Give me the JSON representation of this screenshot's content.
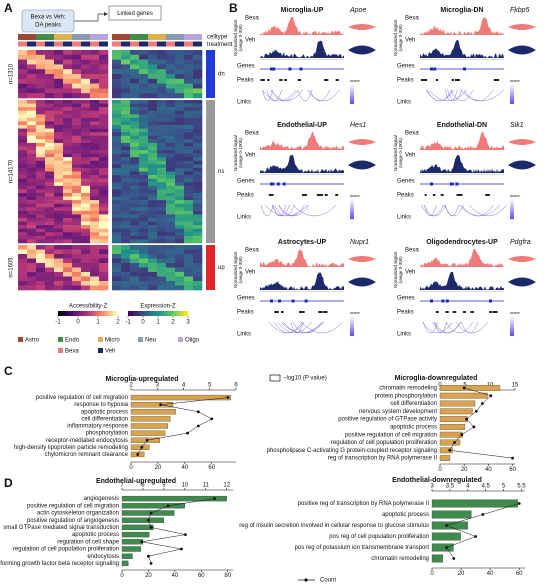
{
  "panels": {
    "a": "A",
    "b": "B",
    "c": "C",
    "d": "D"
  },
  "panel_a": {
    "callout": [
      "Bexa vs Veh:",
      "DA peaks"
    ],
    "linked": "Linked genes",
    "celltype": "celltype",
    "treatment": "treatment",
    "sections": [
      "n=1310",
      "n=14170",
      "n=1605"
    ],
    "groups": [
      "dn",
      "ns",
      "up"
    ],
    "scale1": {
      "title": "Accessibility-Z",
      "ticks": [
        -1,
        0,
        1,
        2
      ]
    },
    "scale2": {
      "title": "Expression-Z",
      "ticks": [
        -1,
        0,
        1,
        2,
        3
      ]
    },
    "celltypes": [
      {
        "name": "Astro",
        "color": "#a0472f"
      },
      {
        "name": "Endo",
        "color": "#3f8f46"
      },
      {
        "name": "Micro",
        "color": "#e0b04a"
      },
      {
        "name": "Neu",
        "color": "#8a9bb0"
      },
      {
        "name": "Oligo",
        "color": "#b7a6d8"
      }
    ],
    "treatments": [
      {
        "name": "Bexa",
        "color": "#f07a78"
      },
      {
        "name": "Veh",
        "color": "#1c2a6b"
      }
    ]
  },
  "panel_b": {
    "labels": {
      "bexa": "Bexa",
      "veh": "Veh",
      "signal": "Normalized signal",
      "genes": "Genes",
      "peaks": "Peaks",
      "links": "Links",
      "score": "score"
    },
    "tracks": [
      {
        "title": "Microglia-UP",
        "gene": "Apoe",
        "range": "(range 0-300)"
      },
      {
        "title": "Microglia-DN",
        "gene": "Fkbp5",
        "range": "(range 0-300)"
      },
      {
        "title": "Endothelial-UP",
        "gene": "Hes1",
        "range": "(range 0-1000)"
      },
      {
        "title": "Endothelial-DN",
        "gene": "Sik1",
        "range": "(range 0-1000)"
      },
      {
        "title": "Astrocytes-UP",
        "gene": "Nupr1",
        "range": "(range 0-300)"
      },
      {
        "title": "Oligodendrocytes-UP",
        "gene": "Pdgfra",
        "range": "(range 0-300)"
      }
    ]
  },
  "legend": {
    "pvalue": "−log10 (P value)",
    "count": "Count"
  },
  "chart_data": [
    {
      "type": "bar",
      "title": "Microglia-upregulated",
      "color": "#d9a24e",
      "categories": [
        "positive regulation of cell migration",
        "response to hypoxia",
        "apoptotic process",
        "cell differentiation",
        "inflammatory response",
        "phosphorylation",
        "receptor-mediated endocytosis",
        "high-density lipoprotein particle remodeling",
        "chylomicron remnant clearance"
      ],
      "values": [
        5.8,
        3.6,
        3.7,
        3.5,
        3.4,
        3.3,
        3.1,
        2.7,
        2.5
      ],
      "counts": [
        72,
        22,
        50,
        60,
        50,
        42,
        12,
        8,
        5
      ],
      "xlim": [
        2,
        6
      ],
      "xticks": [
        2,
        3,
        4,
        5,
        6
      ],
      "x2lim": [
        0,
        78
      ],
      "x2ticks": [
        0,
        20,
        40,
        60
      ]
    },
    {
      "type": "bar",
      "title": "Microglia-downregulated",
      "color": "#d9a24e",
      "categories": [
        "chromatin remodeling",
        "protein phosphorylation",
        "cell differentiation",
        "nervous system development",
        "positive regulation of GTPase activity",
        "apoptotic process",
        "positive regulation of cell migration",
        "regulation of cell population proliferation",
        "phospholipase C-activating G protein-coupled receptor signaling",
        "reg of transcription by RNA polymerase II"
      ],
      "values": [
        12,
        9.5,
        7,
        6.5,
        5.5,
        5,
        4.5,
        4,
        2.5,
        2
      ],
      "counts": [
        20,
        42,
        35,
        30,
        22,
        28,
        18,
        12,
        8,
        60
      ],
      "xlim": [
        0,
        15
      ],
      "xticks": [
        0,
        5,
        10,
        15
      ],
      "x2lim": [
        0,
        62
      ],
      "x2ticks": [
        0,
        20,
        40,
        60
      ]
    },
    {
      "type": "bar",
      "title": "Endothelial-upregulated",
      "color": "#3f8a4c",
      "categories": [
        "angiogenesis",
        "positive regulation of cell migration",
        "actin cytoskeleton organization",
        "positive regulation of angiogenesis",
        "small GTPase mediated signal transduction",
        "apoptotic process",
        "regulation of cell shape",
        "regulation of cell population proliferation",
        "endocytosis",
        "transforming growth factor beta receptor signaling"
      ],
      "values": [
        12,
        10,
        9.5,
        9,
        8.5,
        8.3,
        8,
        7.9,
        7.5,
        7.3
      ],
      "counts": [
        70,
        35,
        22,
        20,
        22,
        48,
        15,
        45,
        20,
        22
      ],
      "xlim": [
        7,
        12.3
      ],
      "xticks": [
        7,
        8,
        9,
        10,
        11,
        12
      ],
      "x2lim": [
        0,
        84
      ],
      "x2ticks": [
        0,
        20,
        40,
        60,
        80
      ]
    },
    {
      "type": "bar",
      "title": "Endothelial-downregulated",
      "color": "#3f8a4c",
      "categories": [
        "positive reg of transcription by RNA polymerase II",
        "apoptotic process",
        "reg of insulin secretion involved in cellular response to glucose stimulus",
        "pos reg of cell population proliferation",
        "pos reg of potassium ion transmembrane transport",
        "chromatin remodeling"
      ],
      "values": [
        5.4,
        4.1,
        4.0,
        3.8,
        3.6,
        3.3
      ],
      "counts": [
        60,
        35,
        10,
        30,
        10,
        15
      ],
      "xlim": [
        3,
        5.6
      ],
      "xticks": [
        3,
        3.5,
        4,
        4.5,
        5,
        5.5
      ],
      "x2lim": [
        0,
        64
      ],
      "x2ticks": [
        0,
        20,
        40,
        60
      ]
    }
  ]
}
